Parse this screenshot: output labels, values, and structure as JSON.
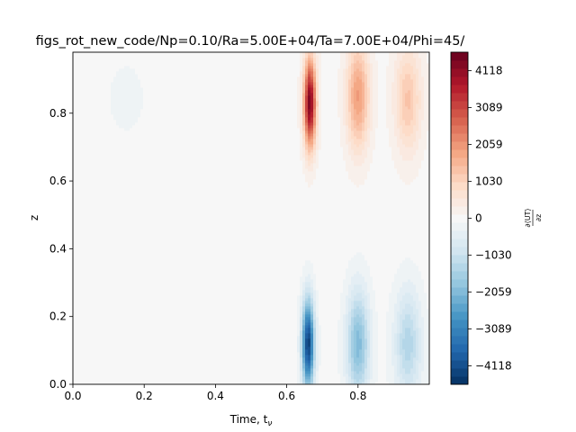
{
  "chart_data": {
    "type": "heatmap",
    "title": "figs_rot_new_code/Np=0.10/Ra=5.00E+04/Ta=7.00E+04/Phi=45/",
    "xlabel": "Time, t",
    "xlabel_subscript": "ν",
    "ylabel": "z",
    "xlim": [
      0.0,
      1.0
    ],
    "ylim": [
      0.0,
      0.98
    ],
    "x_ticks": [
      "0.0",
      "0.2",
      "0.4",
      "0.6",
      "0.8"
    ],
    "x_tick_values": [
      0.0,
      0.2,
      0.4,
      0.6,
      0.8
    ],
    "y_ticks": [
      "0.0",
      "0.2",
      "0.4",
      "0.6",
      "0.8"
    ],
    "y_tick_values": [
      0.0,
      0.2,
      0.4,
      0.6,
      0.8
    ],
    "colorbar": {
      "label": "∂⟨UT⟩ / ∂z",
      "label_num": "∂⟨UT⟩",
      "label_den": "∂z",
      "range": [
        -4630,
        4630
      ],
      "levels": 41,
      "colormap": "RdBu_r",
      "ticks": [
        "−4118",
        "−3089",
        "−2059",
        "−1030",
        "0",
        "1030",
        "2059",
        "3089",
        "4118"
      ],
      "tick_values": [
        -4118,
        -3089,
        -2059,
        -1030,
        0,
        1030,
        2059,
        3089,
        4118
      ]
    },
    "features": [
      {
        "t": 0.665,
        "z": 0.83,
        "value": 4300,
        "t_width": 0.012,
        "z_width": 0.09
      },
      {
        "t": 0.66,
        "z": 0.12,
        "value": -4300,
        "t_width": 0.012,
        "z_width": 0.09
      },
      {
        "t": 0.8,
        "z": 0.85,
        "value": 1900,
        "t_width": 0.022,
        "z_width": 0.11
      },
      {
        "t": 0.8,
        "z": 0.12,
        "value": -2000,
        "t_width": 0.022,
        "z_width": 0.11
      },
      {
        "t": 0.94,
        "z": 0.84,
        "value": 1250,
        "t_width": 0.026,
        "z_width": 0.11
      },
      {
        "t": 0.94,
        "z": 0.12,
        "value": -1350,
        "t_width": 0.026,
        "z_width": 0.11
      },
      {
        "t": 0.15,
        "z": 0.85,
        "value": -200,
        "t_width": 0.06,
        "z_width": 0.12
      }
    ]
  }
}
